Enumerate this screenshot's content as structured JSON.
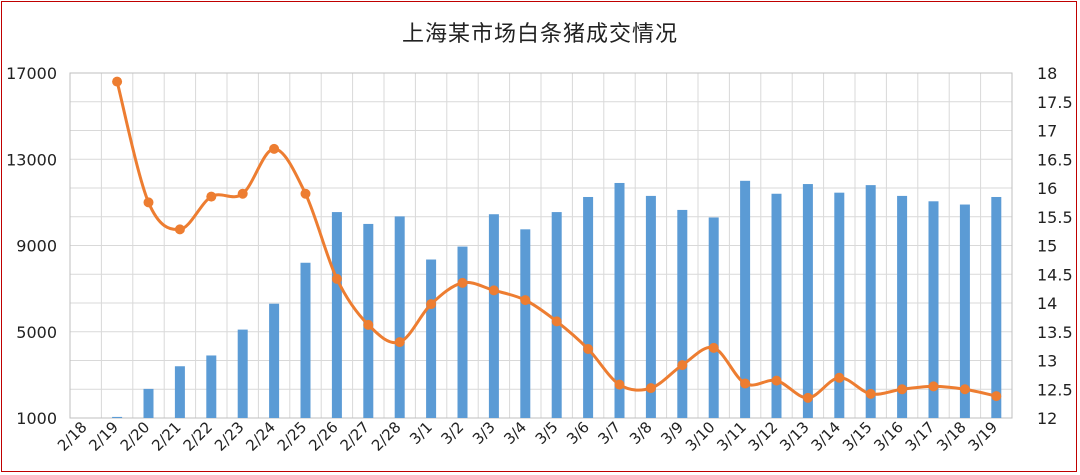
{
  "chart_data": {
    "type": "bar+line",
    "title": "上海某市场白条猪成交情况",
    "categories": [
      "2/18",
      "2/19",
      "2/20",
      "2/21",
      "2/22",
      "2/23",
      "2/24",
      "2/25",
      "2/26",
      "2/27",
      "2/28",
      "3/1",
      "3/2",
      "3/3",
      "3/4",
      "3/5",
      "3/6",
      "3/7",
      "3/8",
      "3/9",
      "3/10",
      "3/11",
      "3/12",
      "3/13",
      "3/14",
      "3/15",
      "3/16",
      "3/17",
      "3/18",
      "3/19"
    ],
    "y_left": {
      "ticks": [
        "17000",
        "13000",
        "9000",
        "5000",
        "1000"
      ],
      "ylim": [
        1000,
        17000
      ]
    },
    "y_right": {
      "ticks": [
        "18",
        "17.5",
        "17",
        "16.5",
        "16",
        "15.5",
        "15",
        "14.5",
        "14",
        "13.5",
        "13",
        "12.5",
        "12"
      ],
      "ylim": [
        12,
        18
      ]
    },
    "series": [
      {
        "kind": "bar",
        "axis": "left",
        "color": "#5b9bd5",
        "values": [
          null,
          1050,
          2350,
          3400,
          3900,
          5100,
          6300,
          8200,
          10550,
          10000,
          10350,
          8350,
          8950,
          10450,
          9750,
          10550,
          11250,
          11900,
          11300,
          10650,
          10300,
          12000,
          11400,
          11850,
          11450,
          11800,
          11300,
          11050,
          10900,
          11250
        ]
      },
      {
        "kind": "line",
        "axis": "right",
        "color": "#ed7d31",
        "values": [
          null,
          17.85,
          15.75,
          15.28,
          15.85,
          15.9,
          16.68,
          15.9,
          14.42,
          13.62,
          13.32,
          13.98,
          14.35,
          14.22,
          14.05,
          13.68,
          13.2,
          12.58,
          12.52,
          12.92,
          13.22,
          12.6,
          12.65,
          12.35,
          12.7,
          12.42,
          12.5,
          12.55,
          12.5,
          12.38
        ]
      }
    ],
    "grid": true
  }
}
